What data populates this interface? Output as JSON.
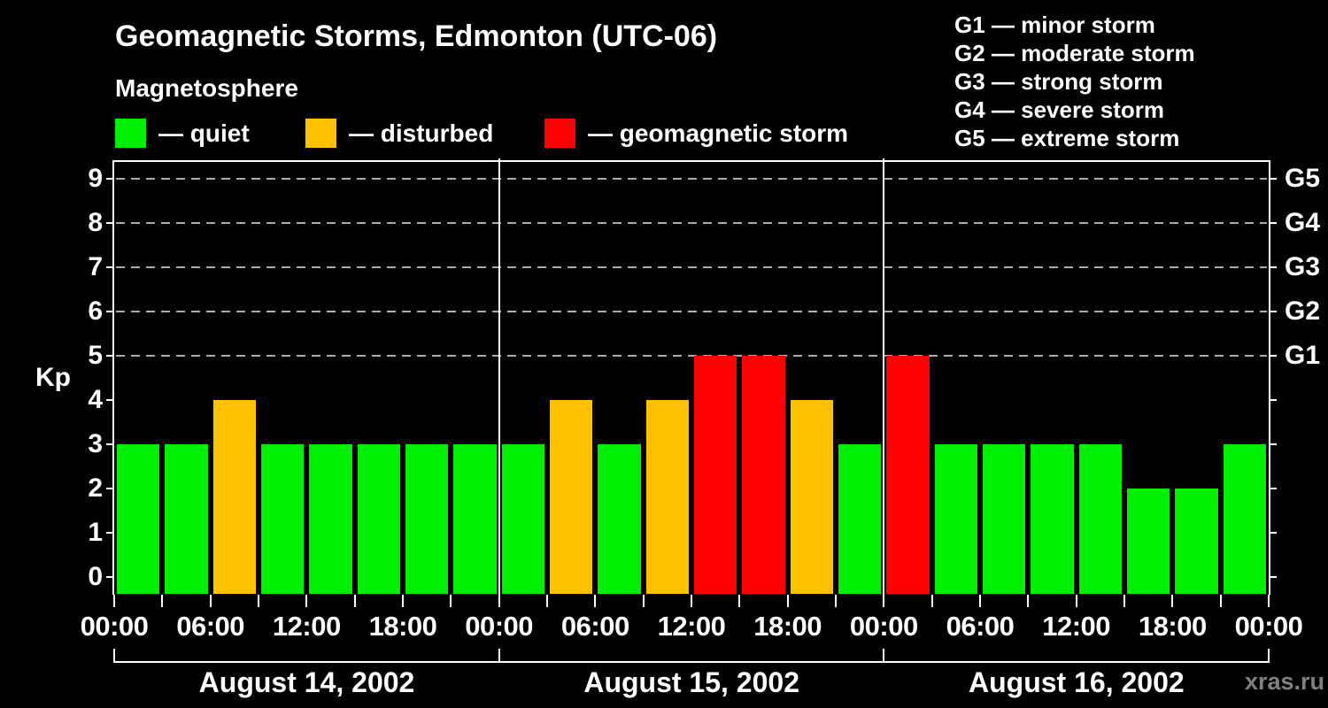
{
  "header": {
    "title": "Geomagnetic Storms, Edmonton (UTC-06)",
    "subtitle": "Magnetosphere",
    "bar_legend": [
      {
        "key": "quiet",
        "label": "— quiet"
      },
      {
        "key": "disturbed",
        "label": "— disturbed"
      },
      {
        "key": "storm",
        "label": "— geomagnetic storm"
      }
    ],
    "g_scale_legend": [
      "G1 — minor storm",
      "G2 — moderate storm",
      "G3 — strong storm",
      "G4 — severe storm",
      "G5 — extreme storm"
    ]
  },
  "watermark": "xras.ru",
  "colors": {
    "quiet": "#00ee00",
    "disturbed": "#ffc000",
    "storm": "#ff0000",
    "axis": "#ffffff",
    "gridline": "#aaaaaa",
    "background": "#000000",
    "watermark": "#808080"
  },
  "chart_data": {
    "type": "bar",
    "title": "Geomagnetic Storms, Edmonton (UTC-06)",
    "ylabel": "Kp",
    "ylim": [
      0,
      9
    ],
    "yticks": [
      0,
      1,
      2,
      3,
      4,
      5,
      6,
      7,
      8,
      9
    ],
    "gridlines_at_kp": [
      5,
      6,
      7,
      8,
      9
    ],
    "right_axis_labels": [
      {
        "label": "G5",
        "kp": 9
      },
      {
        "label": "G4",
        "kp": 8
      },
      {
        "label": "G3",
        "kp": 7
      },
      {
        "label": "G2",
        "kp": 6
      },
      {
        "label": "G1",
        "kp": 5
      }
    ],
    "interval_hours": 3,
    "x_tick_labels": [
      "00:00",
      "06:00",
      "12:00",
      "18:00",
      "00:00",
      "06:00",
      "12:00",
      "18:00",
      "00:00",
      "06:00",
      "12:00",
      "18:00",
      "00:00"
    ],
    "x_label_step_ticks": 2,
    "days": [
      {
        "date": "August 14, 2002",
        "kp_values": [
          3,
          3,
          4,
          3,
          3,
          3,
          3,
          3
        ]
      },
      {
        "date": "August 15, 2002",
        "kp_values": [
          3,
          4,
          3,
          4,
          5,
          5,
          4,
          3
        ]
      },
      {
        "date": "August 16, 2002",
        "kp_values": [
          5,
          3,
          3,
          3,
          3,
          2,
          2,
          3
        ]
      }
    ],
    "color_rule": {
      "disturbed_at_kp": 4,
      "storm_at_or_above_kp": 5
    },
    "legend_position": "top-left",
    "grid": "dashed horizontal at G-levels only"
  }
}
